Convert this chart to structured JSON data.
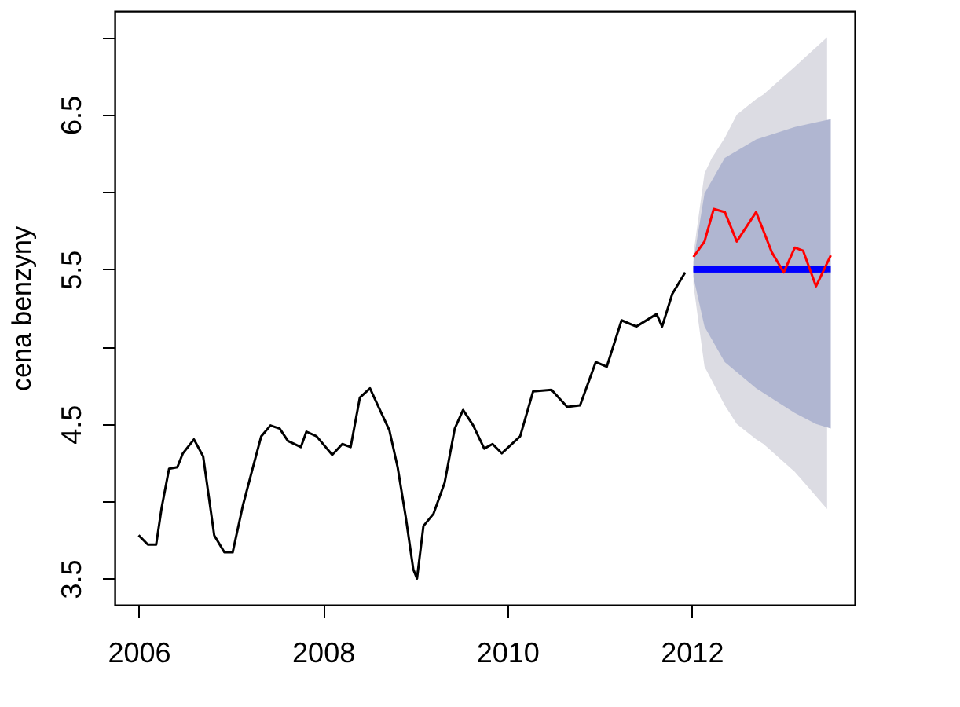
{
  "chart_data": {
    "type": "line",
    "ylabel": "cena benzyny",
    "xlim": [
      2005.74,
      2013.77
    ],
    "ylim": [
      3.33,
      7.17
    ],
    "xticks": [
      2006,
      2008,
      2010,
      2012
    ],
    "yticks": [
      3.5,
      {
        "value": 4,
        "label": null
      },
      4.5,
      {
        "value": 5,
        "label": null
      },
      5.5,
      {
        "value": 6,
        "label": null
      },
      6.5,
      {
        "value": 7,
        "label": null
      }
    ],
    "grid": false,
    "line_style": "solid",
    "marker": "none",
    "series": [
      {
        "color": "#0000ff",
        "x": [
          2012.02,
          2012.14,
          2012.22,
          2012.36,
          2012.49,
          2012.7,
          2012.78,
          2013.12,
          2013.47
        ],
        "values": [
          5.5,
          5.5,
          5.5,
          5.5,
          5.5,
          5.5,
          5.5,
          5.5,
          5.5
        ],
        "upper": [
          5.6,
          6.12,
          6.22,
          6.35,
          6.5,
          6.6,
          6.63,
          6.81,
          7.0
        ],
        "lower": [
          5.4,
          4.87,
          4.78,
          4.62,
          4.5,
          4.4,
          4.37,
          4.19,
          3.95
        ]
      },
      {
        "color": "#0000ff",
        "x": [
          2012.02,
          2012.14,
          2012.36,
          2012.7,
          2013.12,
          2013.35,
          2013.51
        ],
        "values": [
          5.5,
          5.5,
          5.5,
          5.5,
          5.5,
          5.5,
          5.5
        ],
        "upper": [
          5.55,
          5.99,
          6.22,
          6.34,
          6.42,
          6.45,
          6.47
        ],
        "lower": [
          5.45,
          5.13,
          4.9,
          4.73,
          4.57,
          4.5,
          4.47
        ]
      },
      {
        "color": "#000000",
        "x": [
          2006.0,
          2006.1,
          2006.19,
          2006.25,
          2006.33,
          2006.42,
          2006.48,
          2006.6,
          2006.7,
          2006.82,
          2006.93,
          2007.02,
          2007.13,
          2007.24,
          2007.33,
          2007.43,
          2007.53,
          2007.62,
          2007.76,
          2007.82,
          2007.93,
          2008.1,
          2008.21,
          2008.3,
          2008.4,
          2008.51,
          2008.61,
          2008.72,
          2008.81,
          2008.9,
          2008.98,
          2009.02,
          2009.09,
          2009.2,
          2009.32,
          2009.43,
          2009.52,
          2009.63,
          2009.75,
          2009.84,
          2009.94,
          2010.14,
          2010.28,
          2010.48,
          2010.65,
          2010.79,
          2010.96,
          2011.08,
          2011.24,
          2011.4,
          2011.62,
          2011.68,
          2011.79,
          2011.93
        ],
        "values": [
          3.78,
          3.72,
          3.72,
          3.96,
          4.21,
          4.22,
          4.31,
          4.4,
          4.29,
          3.78,
          3.67,
          3.67,
          3.97,
          4.22,
          4.42,
          4.49,
          4.47,
          4.39,
          4.35,
          4.45,
          4.42,
          4.3,
          4.37,
          4.35,
          4.67,
          4.73,
          4.6,
          4.46,
          4.22,
          3.89,
          3.56,
          3.5,
          3.84,
          3.92,
          4.12,
          4.47,
          4.59,
          4.49,
          4.34,
          4.37,
          4.31,
          4.42,
          4.71,
          4.72,
          4.61,
          4.62,
          4.9,
          4.87,
          5.17,
          5.13,
          5.21,
          5.13,
          5.34,
          5.48
        ]
      },
      {
        "color": "#ff0000",
        "x": [
          2012.02,
          2012.14,
          2012.24,
          2012.36,
          2012.49,
          2012.7,
          2012.87,
          2013.0,
          2013.12,
          2013.21,
          2013.35,
          2013.51
        ],
        "values": [
          5.58,
          5.68,
          5.89,
          5.87,
          5.68,
          5.87,
          5.61,
          5.48,
          5.64,
          5.62,
          5.39,
          5.59
        ]
      }
    ]
  }
}
